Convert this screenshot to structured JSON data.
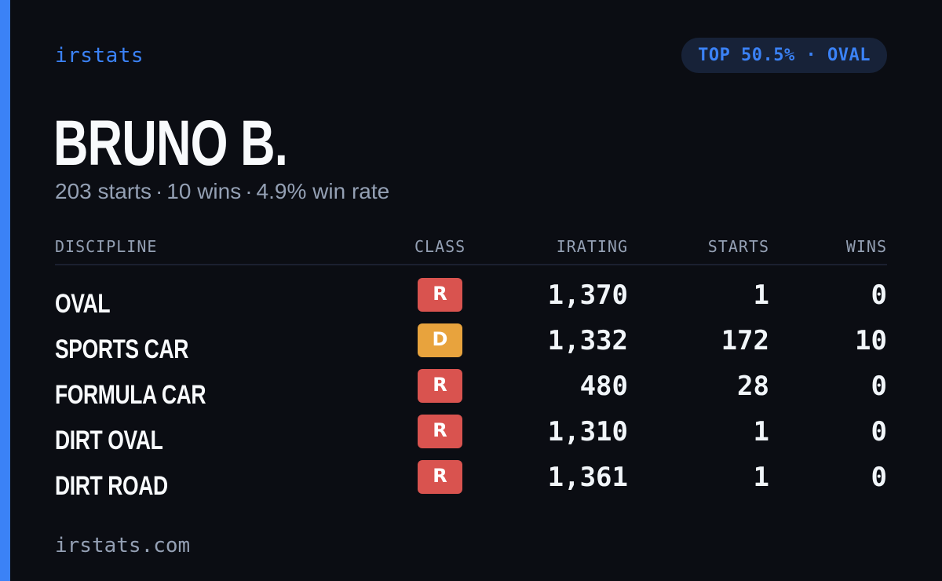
{
  "brand": "irstats",
  "badge": "TOP 50.5% · OVAL",
  "driver": {
    "name": "BRUNO B.",
    "starts": "203 starts",
    "wins": "10 wins",
    "win_rate": "4.9% win rate",
    "separator": "·"
  },
  "table": {
    "headers": {
      "discipline": "DISCIPLINE",
      "class": "CLASS",
      "irating": "IRATING",
      "starts": "STARTS",
      "wins": "WINS"
    },
    "rows": [
      {
        "discipline": "OVAL",
        "class": "R",
        "class_color": "#d9534f",
        "irating": "1,370",
        "starts": "1",
        "wins": "0"
      },
      {
        "discipline": "SPORTS CAR",
        "class": "D",
        "class_color": "#e8a33d",
        "irating": "1,332",
        "starts": "172",
        "wins": "10"
      },
      {
        "discipline": "FORMULA CAR",
        "class": "R",
        "class_color": "#d9534f",
        "irating": "480",
        "starts": "28",
        "wins": "0"
      },
      {
        "discipline": "DIRT OVAL",
        "class": "R",
        "class_color": "#d9534f",
        "irating": "1,310",
        "starts": "1",
        "wins": "0"
      },
      {
        "discipline": "DIRT ROAD",
        "class": "R",
        "class_color": "#d9534f",
        "irating": "1,361",
        "starts": "1",
        "wins": "0"
      }
    ]
  },
  "footer": "irstats.com",
  "colors": {
    "background": "#0b0d13",
    "accent": "#3b82f6",
    "class_r": "#d9534f",
    "class_d": "#e8a33d"
  }
}
